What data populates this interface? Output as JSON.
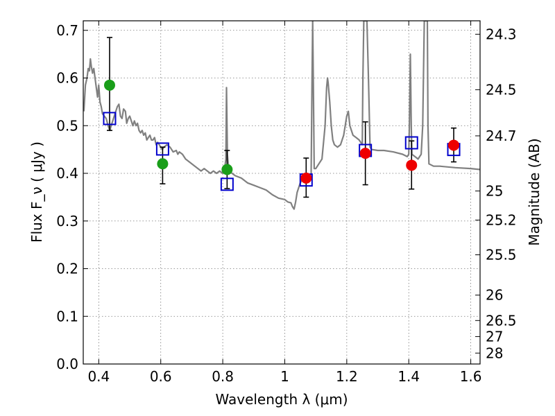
{
  "chart_data": {
    "type": "scatter",
    "xlabel": "Wavelength  λ (μm)",
    "ylabel": "Flux  F_ν  ( μJy )",
    "y2label": "Magnitude (AB)",
    "xlim": [
      0.35,
      1.63
    ],
    "ylim": [
      0.0,
      0.72
    ],
    "grid": true,
    "x_ticks": [
      {
        "value": 0.4,
        "label": "0.4"
      },
      {
        "value": 0.6,
        "label": "0.6"
      },
      {
        "value": 0.8,
        "label": "0.8"
      },
      {
        "value": 1.0,
        "label": "1"
      },
      {
        "value": 1.2,
        "label": "1.2"
      },
      {
        "value": 1.4,
        "label": "1.4"
      },
      {
        "value": 1.6,
        "label": "1.6"
      }
    ],
    "y_ticks": [
      {
        "value": 0.0,
        "label": "0.0"
      },
      {
        "value": 0.1,
        "label": "0.1"
      },
      {
        "value": 0.2,
        "label": "0.2"
      },
      {
        "value": 0.3,
        "label": "0.3"
      },
      {
        "value": 0.4,
        "label": "0.4"
      },
      {
        "value": 0.5,
        "label": "0.5"
      },
      {
        "value": 0.6,
        "label": "0.6"
      },
      {
        "value": 0.7,
        "label": "0.7"
      }
    ],
    "y2_ticks": [
      {
        "mag": 24.3,
        "label": "24.3"
      },
      {
        "mag": 24.5,
        "label": "24.5"
      },
      {
        "mag": 24.7,
        "label": "24.7"
      },
      {
        "mag": 25.0,
        "label": "25"
      },
      {
        "mag": 25.2,
        "label": "25.2"
      },
      {
        "mag": 25.5,
        "label": "25.5"
      },
      {
        "mag": 26.0,
        "label": "26"
      },
      {
        "mag": 26.5,
        "label": "26.5"
      },
      {
        "mag": 27.0,
        "label": "27"
      },
      {
        "mag": 28.0,
        "label": "28"
      }
    ],
    "model_spectrum": {
      "color": "#808080",
      "points": [
        [
          0.352,
          0.53
        ],
        [
          0.357,
          0.585
        ],
        [
          0.362,
          0.6
        ],
        [
          0.366,
          0.62
        ],
        [
          0.37,
          0.615
        ],
        [
          0.373,
          0.64
        ],
        [
          0.376,
          0.625
        ],
        [
          0.38,
          0.61
        ],
        [
          0.384,
          0.62
        ],
        [
          0.388,
          0.6
        ],
        [
          0.392,
          0.58
        ],
        [
          0.396,
          0.56
        ],
        [
          0.4,
          0.585
        ],
        [
          0.404,
          0.55
        ],
        [
          0.408,
          0.54
        ],
        [
          0.412,
          0.525
        ],
        [
          0.418,
          0.52
        ],
        [
          0.424,
          0.515
        ],
        [
          0.43,
          0.5
        ],
        [
          0.436,
          0.49
        ],
        [
          0.44,
          0.5
        ],
        [
          0.445,
          0.51
        ],
        [
          0.45,
          0.52
        ],
        [
          0.455,
          0.53
        ],
        [
          0.46,
          0.54
        ],
        [
          0.465,
          0.545
        ],
        [
          0.47,
          0.52
        ],
        [
          0.475,
          0.515
        ],
        [
          0.48,
          0.535
        ],
        [
          0.486,
          0.53
        ],
        [
          0.49,
          0.505
        ],
        [
          0.495,
          0.515
        ],
        [
          0.5,
          0.52
        ],
        [
          0.505,
          0.51
        ],
        [
          0.51,
          0.5
        ],
        [
          0.515,
          0.51
        ],
        [
          0.52,
          0.5
        ],
        [
          0.525,
          0.505
        ],
        [
          0.53,
          0.49
        ],
        [
          0.535,
          0.485
        ],
        [
          0.54,
          0.49
        ],
        [
          0.545,
          0.48
        ],
        [
          0.55,
          0.485
        ],
        [
          0.555,
          0.47
        ],
        [
          0.56,
          0.475
        ],
        [
          0.565,
          0.48
        ],
        [
          0.57,
          0.47
        ],
        [
          0.575,
          0.47
        ],
        [
          0.58,
          0.475
        ],
        [
          0.585,
          0.46
        ],
        [
          0.59,
          0.465
        ],
        [
          0.595,
          0.46
        ],
        [
          0.6,
          0.455
        ],
        [
          0.605,
          0.45
        ],
        [
          0.61,
          0.455
        ],
        [
          0.62,
          0.46
        ],
        [
          0.63,
          0.455
        ],
        [
          0.64,
          0.445
        ],
        [
          0.65,
          0.448
        ],
        [
          0.655,
          0.44
        ],
        [
          0.66,
          0.445
        ],
        [
          0.67,
          0.44
        ],
        [
          0.68,
          0.43
        ],
        [
          0.69,
          0.425
        ],
        [
          0.7,
          0.42
        ],
        [
          0.71,
          0.415
        ],
        [
          0.72,
          0.41
        ],
        [
          0.73,
          0.405
        ],
        [
          0.74,
          0.41
        ],
        [
          0.75,
          0.405
        ],
        [
          0.76,
          0.4
        ],
        [
          0.77,
          0.405
        ],
        [
          0.78,
          0.4
        ],
        [
          0.79,
          0.405
        ],
        [
          0.8,
          0.4
        ],
        [
          0.805,
          0.405
        ],
        [
          0.81,
          0.43
        ],
        [
          0.812,
          0.58
        ],
        [
          0.815,
          0.44
        ],
        [
          0.82,
          0.405
        ],
        [
          0.83,
          0.4
        ],
        [
          0.84,
          0.395
        ],
        [
          0.86,
          0.39
        ],
        [
          0.88,
          0.38
        ],
        [
          0.9,
          0.375
        ],
        [
          0.92,
          0.37
        ],
        [
          0.94,
          0.365
        ],
        [
          0.96,
          0.355
        ],
        [
          0.98,
          0.348
        ],
        [
          1.0,
          0.345
        ],
        [
          1.01,
          0.34
        ],
        [
          1.02,
          0.338
        ],
        [
          1.025,
          0.33
        ],
        [
          1.03,
          0.325
        ],
        [
          1.035,
          0.34
        ],
        [
          1.04,
          0.36
        ],
        [
          1.05,
          0.38
        ],
        [
          1.06,
          0.39
        ],
        [
          1.07,
          0.385
        ],
        [
          1.08,
          0.39
        ],
        [
          1.085,
          0.4
        ],
        [
          1.088,
          0.6
        ],
        [
          1.09,
          0.72
        ],
        [
          1.092,
          0.6
        ],
        [
          1.095,
          0.41
        ],
        [
          1.1,
          0.41
        ],
        [
          1.11,
          0.42
        ],
        [
          1.12,
          0.43
        ],
        [
          1.13,
          0.5
        ],
        [
          1.135,
          0.58
        ],
        [
          1.138,
          0.6
        ],
        [
          1.14,
          0.59
        ],
        [
          1.145,
          0.55
        ],
        [
          1.15,
          0.5
        ],
        [
          1.155,
          0.47
        ],
        [
          1.16,
          0.46
        ],
        [
          1.17,
          0.455
        ],
        [
          1.18,
          0.46
        ],
        [
          1.19,
          0.48
        ],
        [
          1.2,
          0.52
        ],
        [
          1.205,
          0.53
        ],
        [
          1.21,
          0.5
        ],
        [
          1.22,
          0.48
        ],
        [
          1.23,
          0.475
        ],
        [
          1.24,
          0.47
        ],
        [
          1.25,
          0.46
        ],
        [
          1.252,
          0.6
        ],
        [
          1.255,
          0.72
        ],
        [
          1.265,
          0.72
        ],
        [
          1.27,
          0.6
        ],
        [
          1.275,
          0.455
        ],
        [
          1.28,
          0.45
        ],
        [
          1.3,
          0.448
        ],
        [
          1.32,
          0.448
        ],
        [
          1.35,
          0.445
        ],
        [
          1.38,
          0.44
        ],
        [
          1.395,
          0.435
        ],
        [
          1.4,
          0.44
        ],
        [
          1.402,
          0.5
        ],
        [
          1.405,
          0.65
        ],
        [
          1.408,
          0.5
        ],
        [
          1.41,
          0.44
        ],
        [
          1.42,
          0.435
        ],
        [
          1.43,
          0.43
        ],
        [
          1.44,
          0.44
        ],
        [
          1.445,
          0.5
        ],
        [
          1.45,
          0.72
        ],
        [
          1.46,
          0.72
        ],
        [
          1.462,
          0.5
        ],
        [
          1.465,
          0.42
        ],
        [
          1.48,
          0.415
        ],
        [
          1.5,
          0.415
        ],
        [
          1.55,
          0.412
        ],
        [
          1.6,
          0.41
        ],
        [
          1.63,
          0.408
        ]
      ]
    },
    "observed_blue_series": {
      "color": "#1a9e1a",
      "points": [
        {
          "x": 0.435,
          "y": 0.585,
          "yerr_low": 0.49,
          "yerr_high": 0.685
        },
        {
          "x": 0.606,
          "y": 0.42,
          "yerr_low": 0.378,
          "yerr_high": 0.455
        },
        {
          "x": 0.814,
          "y": 0.408,
          "yerr_low": 0.368,
          "yerr_high": 0.448
        }
      ]
    },
    "observed_red_series": {
      "color": "#ee0000",
      "points": [
        {
          "x": 1.069,
          "y": 0.39,
          "yerr_low": 0.35,
          "yerr_high": 0.432
        },
        {
          "x": 1.26,
          "y": 0.442,
          "yerr_low": 0.376,
          "yerr_high": 0.508
        },
        {
          "x": 1.409,
          "y": 0.417,
          "yerr_low": 0.367,
          "yerr_high": 0.468
        },
        {
          "x": 1.545,
          "y": 0.459,
          "yerr_low": 0.424,
          "yerr_high": 0.495
        }
      ]
    },
    "model_photometry": {
      "color": "#0000cc",
      "points": [
        {
          "x": 0.435,
          "y": 0.515
        },
        {
          "x": 0.606,
          "y": 0.451
        },
        {
          "x": 0.814,
          "y": 0.377
        },
        {
          "x": 1.069,
          "y": 0.386
        },
        {
          "x": 1.26,
          "y": 0.448
        },
        {
          "x": 1.409,
          "y": 0.464
        },
        {
          "x": 1.545,
          "y": 0.45
        }
      ]
    }
  }
}
